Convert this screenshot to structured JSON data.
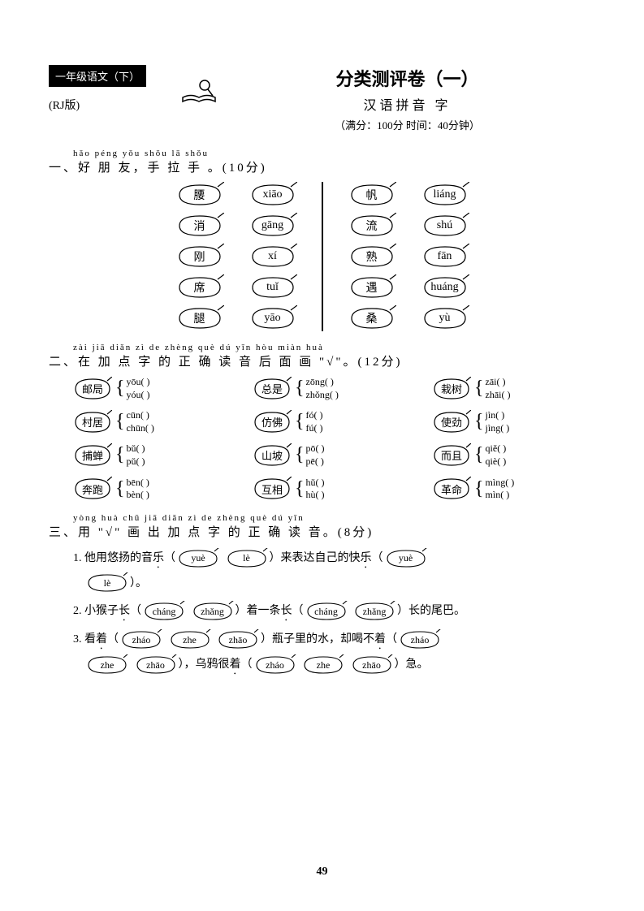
{
  "header": {
    "grade_badge": "一年级语文（下）",
    "version": "(RJ版)",
    "main_title": "分类测评卷（一）",
    "subtitle": "汉语拼音  字",
    "meta": "（满分：100分    时间：40分钟）"
  },
  "section1": {
    "pinyin": "hǎo péng yǒu    shǒu lā shǒu",
    "title": "一、好 朋 友，手 拉 手 。(10分)",
    "left": {
      "chars": [
        "腰",
        "消",
        "刚",
        "席",
        "腿"
      ],
      "pins": [
        "xiāo",
        "gāng",
        "xí",
        "tuǐ",
        "yāo"
      ]
    },
    "right": {
      "chars": [
        "帆",
        "流",
        "熟",
        "遇",
        "桑"
      ],
      "pins": [
        "liáng",
        "shú",
        "fān",
        "huáng",
        "yù"
      ]
    }
  },
  "section2": {
    "pinyin": "zài jiā diǎn zì  de  zhèng què dú yīn hòu miàn huà",
    "title": "二、在 加 点 字 的  正  确 读 音 后 面 画 \"√\"。(12分)",
    "items": [
      {
        "word": "邮局",
        "opts": [
          "yōu(        )",
          "yóu(        )"
        ]
      },
      {
        "word": "总是",
        "opts": [
          "zōng(        )",
          "zhǒng(        )"
        ]
      },
      {
        "word": "栽树",
        "opts": [
          "zāi(        )",
          "zhāi(        )"
        ]
      },
      {
        "word": "村居",
        "opts": [
          "cūn(        )",
          "chūn(        )"
        ]
      },
      {
        "word": "仿佛",
        "opts": [
          "fó(        )",
          "fú(        )"
        ]
      },
      {
        "word": "使劲",
        "opts": [
          "jìn(        )",
          "jìng(        )"
        ]
      },
      {
        "word": "捕蝉",
        "opts": [
          "bǔ(        )",
          "pǔ(        )"
        ]
      },
      {
        "word": "山坡",
        "opts": [
          "pō(        )",
          "pē(        )"
        ]
      },
      {
        "word": "而且",
        "opts": [
          "qiě(        )",
          "qiè(        )"
        ]
      },
      {
        "word": "奔跑",
        "opts": [
          "bēn(        )",
          "bèn(        )"
        ]
      },
      {
        "word": "互相",
        "opts": [
          "hǔ(        )",
          "hù(        )"
        ]
      },
      {
        "word": "革命",
        "opts": [
          "mìng(        )",
          "mìn(        )"
        ]
      }
    ]
  },
  "section3": {
    "pinyin": "yòng        huà chū jiā diǎn zì  de  zhèng què dú yīn",
    "title": "三、用 \"√\" 画 出 加 点 字 的  正  确 读 音。(8分)",
    "q1": {
      "num": "1.",
      "t1": "他用悠扬的音",
      "d1": "乐",
      "o1": "yuè",
      "o2": "lè",
      "t2": "）来表达自己的快",
      "d2": "乐",
      "o3": "yuè",
      "o4": "lè",
      "t3": "）。"
    },
    "q2": {
      "num": "2.",
      "t1": "小猴子",
      "d1": "长",
      "o1": "cháng",
      "o2": "zhǎng",
      "t2": "）着一条",
      "d2": "长",
      "o3": "cháng",
      "o4": "zhǎng",
      "t3": "）长的尾巴。"
    },
    "q3": {
      "num": "3.",
      "t1": "看",
      "d1": "着",
      "o1": "zháo",
      "o2": "zhe",
      "o3": "zhāo",
      "t2": "）瓶子里的水，却喝不",
      "d2": "着",
      "o4": "zháo",
      "o5": "zhe",
      "o6": "zhāo",
      "t3": "），乌鸦很",
      "d3": "着",
      "o7": "zháo",
      "o8": "zhe",
      "o9": "zhāo",
      "t4": "）急。"
    }
  },
  "page_number": "49"
}
